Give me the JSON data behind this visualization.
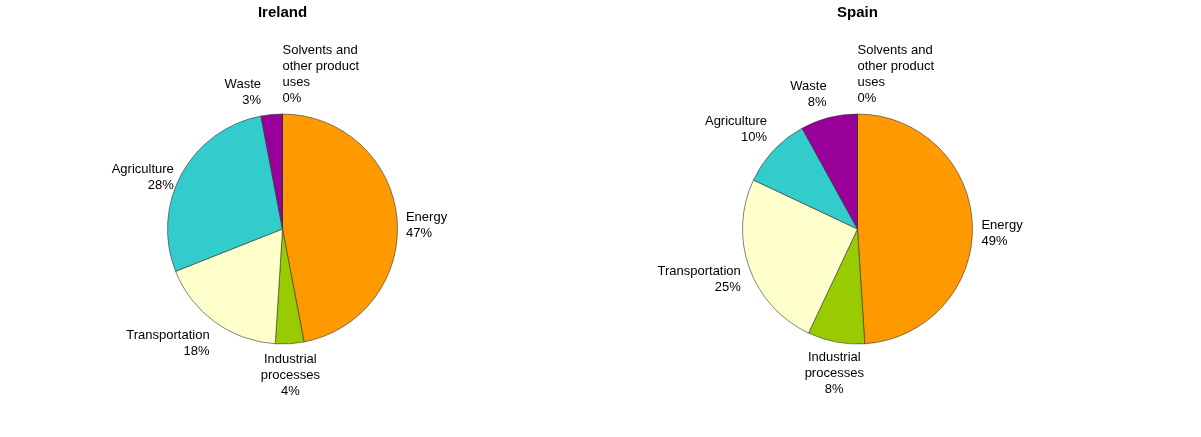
{
  "chart_data": [
    {
      "type": "pie",
      "title": "Ireland",
      "categories": [
        "Energy",
        "Industrial processes",
        "Transportation",
        "Agriculture",
        "Waste",
        "Solvents and other product uses"
      ],
      "values": [
        47,
        4,
        18,
        28,
        3,
        0
      ],
      "value_labels": [
        "47%",
        "4%",
        "18%",
        "28%",
        "3%",
        "0%"
      ],
      "colors": [
        "#ff9900",
        "#99cc00",
        "#ffffcc",
        "#33cccc",
        "#990099",
        "#ffff99"
      ]
    },
    {
      "type": "pie",
      "title": "Spain",
      "categories": [
        "Energy",
        "Industrial processes",
        "Transportation",
        "Agriculture",
        "Waste",
        "Solvents and other product uses"
      ],
      "values": [
        49,
        8,
        25,
        10,
        8,
        0
      ],
      "value_labels": [
        "49%",
        "8%",
        "25%",
        "10%",
        "8%",
        "0%"
      ],
      "colors": [
        "#ff9900",
        "#99cc00",
        "#ffffcc",
        "#33cccc",
        "#990099",
        "#ffff99"
      ]
    }
  ]
}
